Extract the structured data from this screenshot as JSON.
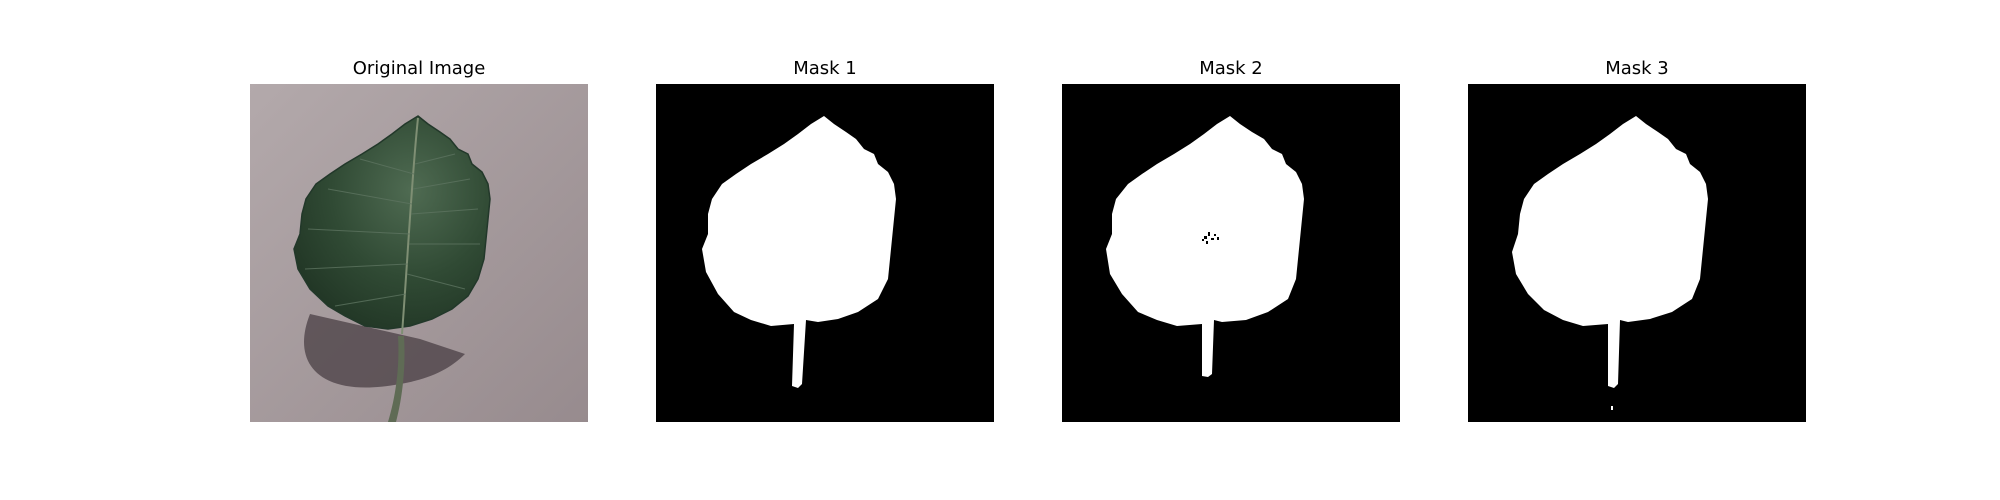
{
  "panels": [
    {
      "title": "Original Image"
    },
    {
      "title": "Mask 1"
    },
    {
      "title": "Mask 2"
    },
    {
      "title": "Mask 3"
    }
  ],
  "colors": {
    "background": "#ffffff",
    "mask_background": "#000000",
    "mask_foreground": "#ffffff",
    "photo_surface": "#a69a9c",
    "leaf": "#2f4a33",
    "shadow": "#4a3f44"
  }
}
